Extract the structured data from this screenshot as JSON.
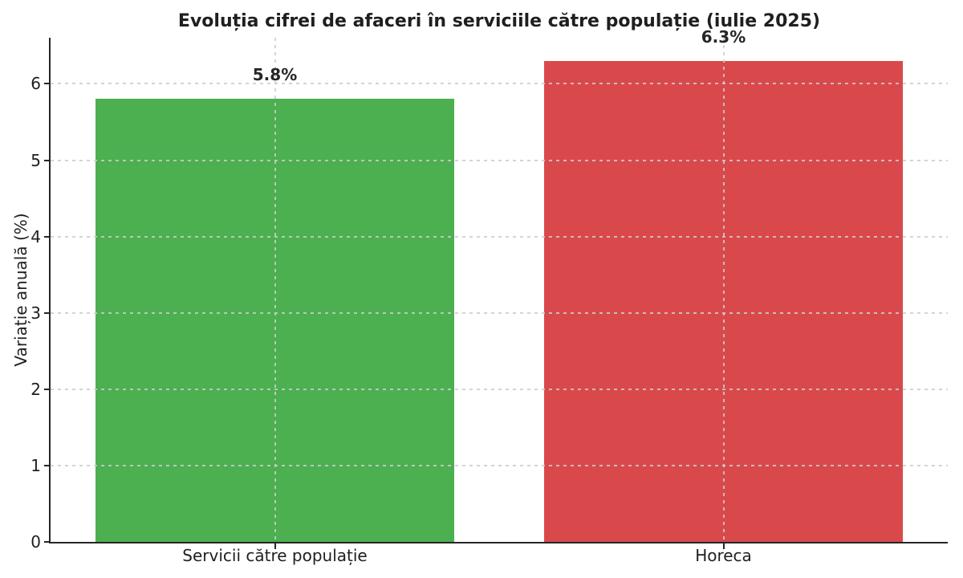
{
  "chart_data": {
    "type": "bar",
    "title": "Evoluția cifrei de afaceri în serviciile către populație (iulie 2025)",
    "ylabel": "Variație anuală (%)",
    "xlabel": "",
    "categories": [
      "Servicii către populație",
      "Horeca"
    ],
    "values": [
      5.8,
      6.3
    ],
    "value_labels": [
      "5.8%",
      "6.3%"
    ],
    "bar_colors": [
      "#4CAF50",
      "#D9494C"
    ],
    "ytick_labels": [
      "0",
      "1",
      "2",
      "3",
      "4",
      "5",
      "6"
    ],
    "ytick_values": [
      0,
      1,
      2,
      3,
      4,
      5,
      6
    ],
    "ylim": [
      0,
      6.615
    ],
    "grid": "dashed gridlines on both axes, drawn over bars",
    "legend": "none",
    "text_color": "#1f1f1f",
    "spine_color": "#262626",
    "background_color": "#ffffff"
  }
}
